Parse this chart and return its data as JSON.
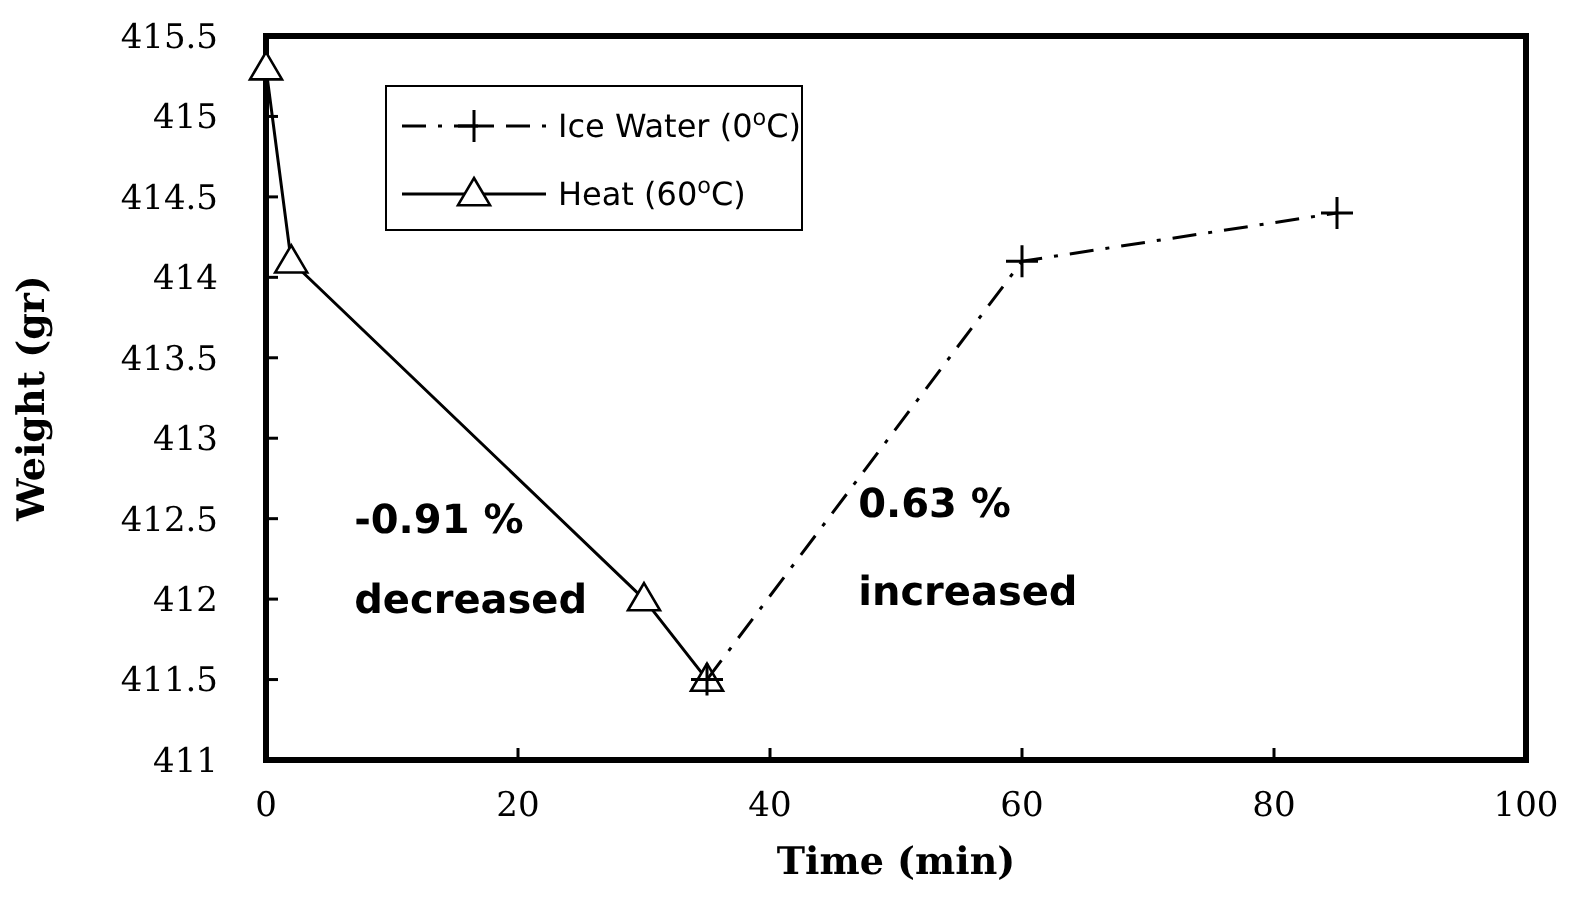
{
  "chart_data": {
    "type": "line",
    "xlabel": "Time (min)",
    "ylabel": "Weight (gr)",
    "xlim": [
      0,
      100
    ],
    "xticks": [
      0,
      20,
      40,
      60,
      80,
      100
    ],
    "ylim": [
      411,
      415.5
    ],
    "yticks": [
      411,
      411.5,
      412,
      412.5,
      413,
      413.5,
      414,
      414.5,
      415,
      415.5
    ],
    "grid": false,
    "legend": "top left",
    "series": [
      {
        "name": "Ice Water (0$^{o}$C)",
        "color": "#000000",
        "x": [
          35,
          60,
          85
        ],
        "values": [
          411.5,
          414.1,
          414.4
        ],
        "marker": "cross",
        "line_style": "dashed"
      },
      {
        "name": "Heat (60$^{o}$C)",
        "color": "#000000",
        "x": [
          0,
          2,
          30,
          35
        ],
        "values": [
          415.3,
          414.1,
          412,
          411.5
        ],
        "marker": "triangle",
        "line_style": "solid"
      }
    ],
    "annotations": [
      "-0.91 %",
      "decreased",
      "0.63 %",
      "increased"
    ]
  }
}
